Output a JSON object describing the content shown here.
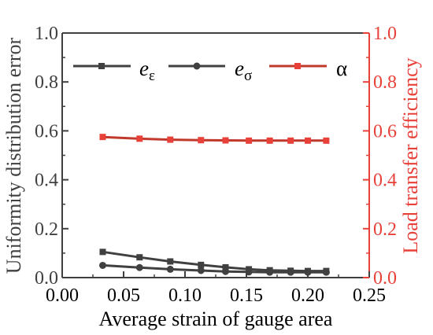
{
  "chart_data": {
    "type": "line",
    "xlabel": "Average strain of gauge area",
    "ylabel_left": "Uniformity distribution error",
    "ylabel_right": "Load transfer efficiency",
    "xlim": [
      0.0,
      0.25
    ],
    "ylim_left": [
      0.0,
      1.0
    ],
    "ylim_right": [
      0.0,
      1.0
    ],
    "xticks": [
      "0.00",
      "0.05",
      "0.10",
      "0.15",
      "0.20",
      "0.25"
    ],
    "yticks_left": [
      "0.0",
      "0.2",
      "0.4",
      "0.6",
      "0.8",
      "1.0"
    ],
    "yticks_right": [
      "0.0",
      "0.2",
      "0.4",
      "0.6",
      "0.8",
      "1.0"
    ],
    "grid": false,
    "legend_position": "top",
    "x": [
      0.033,
      0.063,
      0.088,
      0.113,
      0.133,
      0.152,
      0.169,
      0.186,
      0.2,
      0.215
    ],
    "series": [
      {
        "name_main": "e",
        "name_sub": "ε",
        "axis": "left",
        "color": "#404040",
        "marker": "square",
        "values": [
          0.105,
          0.083,
          0.066,
          0.052,
          0.042,
          0.034,
          0.03,
          0.028,
          0.027,
          0.027
        ]
      },
      {
        "name_main": "e",
        "name_sub": "σ",
        "axis": "left",
        "color": "#404040",
        "marker": "circle",
        "values": [
          0.05,
          0.041,
          0.034,
          0.029,
          0.025,
          0.023,
          0.022,
          0.022,
          0.022,
          0.022
        ]
      },
      {
        "name_main": "α",
        "name_sub": "",
        "axis": "right",
        "color": "#e8413a",
        "marker": "square",
        "values": [
          0.575,
          0.568,
          0.564,
          0.562,
          0.561,
          0.56,
          0.56,
          0.56,
          0.56,
          0.56
        ]
      }
    ]
  }
}
